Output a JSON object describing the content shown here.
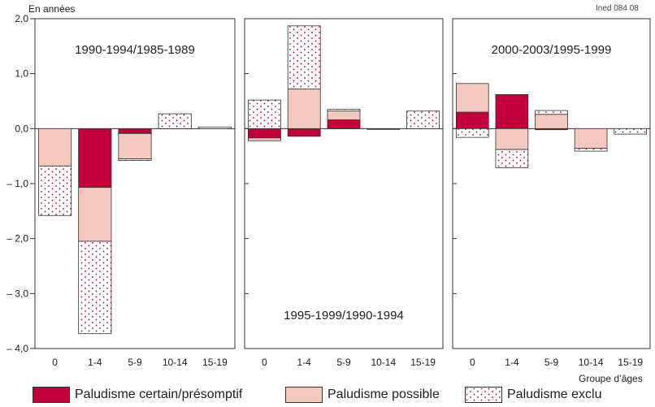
{
  "header": {
    "unit_label": "En années",
    "source_code": "Ined 084 08"
  },
  "colors": {
    "certain": "#c0003a",
    "possible": "#f2c8bf",
    "exclu_bg": "#ffffff",
    "exclu_dot": "#c0003a",
    "axis": "#333333"
  },
  "legend": {
    "items": [
      {
        "key": "certain",
        "label": "Paludisme certain/présomptif"
      },
      {
        "key": "possible",
        "label": "Paludisme possible"
      },
      {
        "key": "exclu",
        "label": "Paludisme exclu"
      }
    ]
  },
  "chart_data": {
    "type": "bar",
    "stacked": true,
    "categories": [
      "0",
      "1-4",
      "5-9",
      "10-14",
      "15-19"
    ],
    "xlabel": "Groupe d’âges",
    "ylabel": "En années",
    "ylim": [
      -4.0,
      2.0
    ],
    "yticks": [
      "2,0",
      "1,0",
      "0,0",
      "– 1,0",
      "– 2,0",
      "– 3,0",
      "– 4,0"
    ],
    "ytick_values": [
      2.0,
      1.0,
      0.0,
      -1.0,
      -2.0,
      -3.0,
      -4.0
    ],
    "grid": false,
    "legend_position": "bottom",
    "panels": [
      {
        "title": "1990-1994/1985-1989",
        "title_position": "top",
        "series": [
          {
            "name": "Paludisme certain/présomptif",
            "key": "certain",
            "values": [
              0.0,
              -1.07,
              -0.09,
              0.0,
              0.0
            ]
          },
          {
            "name": "Paludisme possible",
            "key": "possible",
            "values": [
              -0.68,
              -0.98,
              -0.46,
              0.0,
              0.0
            ]
          },
          {
            "name": "Paludisme exclu",
            "key": "exclu",
            "values": [
              -0.9,
              -1.68,
              -0.03,
              0.27,
              0.03
            ]
          }
        ]
      },
      {
        "title": "1995-1999/1990-1994",
        "title_position": "bottom",
        "series": [
          {
            "name": "Paludisme certain/présomptif",
            "key": "certain",
            "values": [
              -0.17,
              -0.14,
              0.16,
              -0.01,
              0.0
            ]
          },
          {
            "name": "Paludisme possible",
            "key": "possible",
            "values": [
              -0.05,
              0.72,
              0.16,
              0.0,
              0.0
            ]
          },
          {
            "name": "Paludisme exclu",
            "key": "exclu",
            "values": [
              0.52,
              1.15,
              0.03,
              0.0,
              0.32
            ]
          }
        ]
      },
      {
        "title": "2000-2003/1995-1999",
        "title_position": "top",
        "series": [
          {
            "name": "Paludisme certain/présomptif",
            "key": "certain",
            "values": [
              0.3,
              0.62,
              -0.02,
              0.0,
              0.0
            ]
          },
          {
            "name": "Paludisme possible",
            "key": "possible",
            "values": [
              0.52,
              -0.38,
              0.26,
              -0.36,
              0.0
            ]
          },
          {
            "name": "Paludisme exclu",
            "key": "exclu",
            "values": [
              -0.16,
              -0.33,
              0.07,
              -0.05,
              -0.1
            ]
          }
        ]
      }
    ]
  }
}
